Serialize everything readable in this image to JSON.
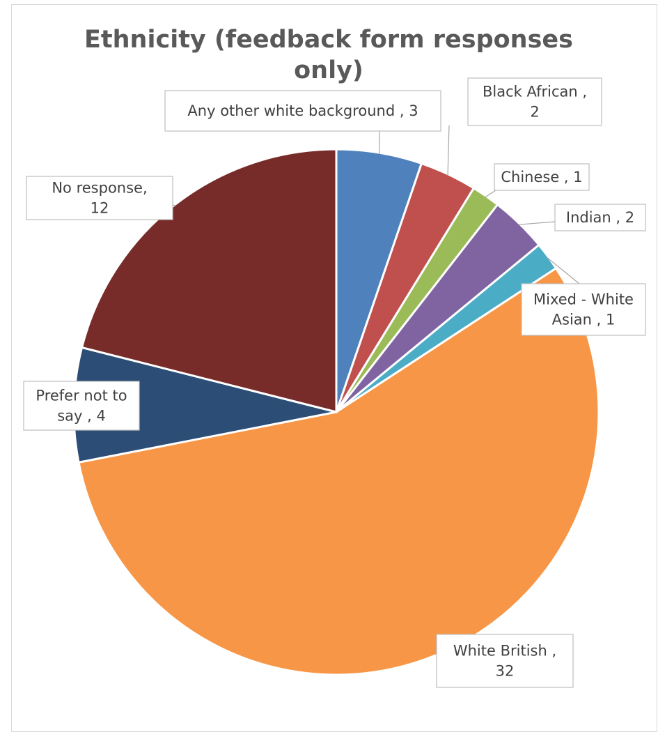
{
  "chart_data": {
    "type": "pie",
    "title": "Ethnicity (feedback form responses only)",
    "title_lines": [
      "Ethnicity (feedback form responses",
      "only)"
    ],
    "start_angle_deg": 0,
    "direction": "clockwise",
    "slices": [
      {
        "name": "Any other white background",
        "value": 3,
        "color": "#4F81BD",
        "label_lines": [
          "Any other white background , 3"
        ]
      },
      {
        "name": "Black African",
        "value": 2,
        "color": "#C0504D",
        "label_lines": [
          "Black African ,",
          "2"
        ]
      },
      {
        "name": "Chinese",
        "value": 1,
        "color": "#9BBB59",
        "label_lines": [
          "Chinese , 1"
        ]
      },
      {
        "name": "Indian",
        "value": 2,
        "color": "#8064A2",
        "label_lines": [
          "Indian , 2"
        ]
      },
      {
        "name": "Mixed - White Asian",
        "value": 1,
        "color": "#4BACC6",
        "label_lines": [
          "Mixed - White",
          "Asian , 1"
        ]
      },
      {
        "name": "White British",
        "value": 32,
        "color": "#F79646",
        "label_lines": [
          "White British ,",
          "32"
        ]
      },
      {
        "name": "Prefer not to say",
        "value": 4,
        "color": "#2C4D75",
        "label_lines": [
          "Prefer not to",
          "say , 4"
        ]
      },
      {
        "name": "No response",
        "value": 12,
        "color": "#772C2A",
        "label_lines": [
          "No response,",
          "12"
        ]
      }
    ],
    "legend": "none",
    "data_labels": "outside with leader lines"
  }
}
